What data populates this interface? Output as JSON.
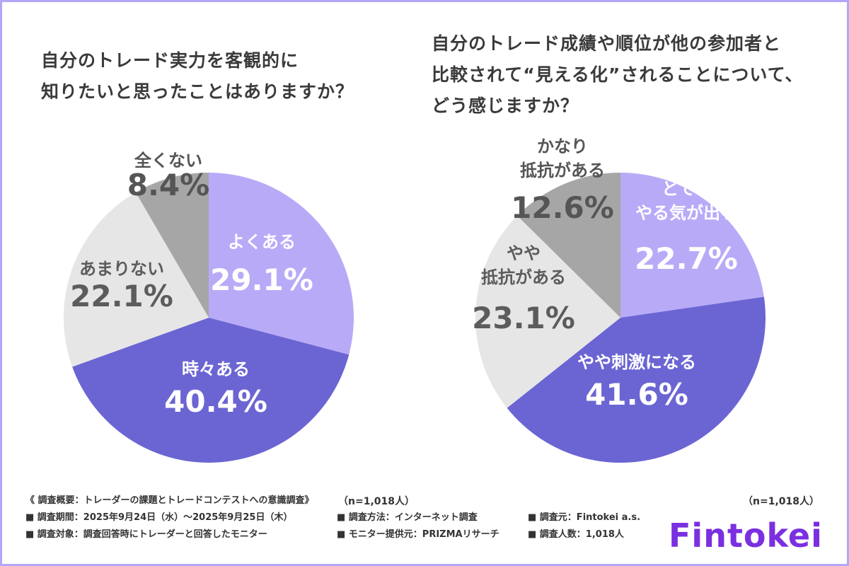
{
  "chart_data": [
    {
      "type": "pie",
      "title": [
        "自分のトレード実力を客観的に",
        "知りたいと思ったことはありますか？"
      ],
      "n_label": "（n=1,018人）",
      "slices": [
        {
          "label": [
            "よくある"
          ],
          "value": 29.1,
          "value_text": "29.1%",
          "color": "#b9aaf8",
          "text_color": "#ffffff"
        },
        {
          "label": [
            "時々ある"
          ],
          "value": 40.4,
          "value_text": "40.4%",
          "color": "#6b65d3",
          "text_color": "#ffffff"
        },
        {
          "label": [
            "あまりない"
          ],
          "value": 22.1,
          "value_text": "22.1%",
          "color": "#e6e6e6",
          "text_color": "#5c5c5c"
        },
        {
          "label": [
            "全くない"
          ],
          "value": 8.4,
          "value_text": "8.4%",
          "color": "#a6a6a6",
          "text_color": "#555555"
        }
      ]
    },
    {
      "type": "pie",
      "title": [
        "自分のトレード成績や順位が他の参加者と",
        "比較されて“見える化”されることについて、",
        "どう感じますか？"
      ],
      "n_label": "（n=1,018人）",
      "slices": [
        {
          "label": [
            "とても",
            "やる気が出る"
          ],
          "value": 22.7,
          "value_text": "22.7%",
          "color": "#b9aaf8",
          "text_color": "#ffffff"
        },
        {
          "label": [
            "やや刺激になる"
          ],
          "value": 41.6,
          "value_text": "41.6%",
          "color": "#6b65d3",
          "text_color": "#ffffff"
        },
        {
          "label": [
            "やや",
            "抵抗がある"
          ],
          "value": 23.1,
          "value_text": "23.1%",
          "color": "#e6e6e6",
          "text_color": "#5c5c5c"
        },
        {
          "label": [
            "かなり",
            "抵抗がある"
          ],
          "value": 12.6,
          "value_text": "12.6%",
          "color": "#a6a6a6",
          "text_color": "#555555"
        }
      ]
    }
  ],
  "footer": {
    "heading": "《 調査概要：トレーダーの課題とトレードコンテストへの意識調査》",
    "rows": [
      [
        "■ 調査期間：2025年9月24日（水）～2025年9月25日（木）",
        "■ 調査方法：インターネット調査",
        "■ 調査元：Fintokei a.s."
      ],
      [
        "■ 調査対象：調査回答時にトレーダーと回答したモニター",
        "■ モニター提供元：PRIZMAリサーチ",
        "■ 調査人数：1,018人"
      ]
    ]
  },
  "brand": {
    "logo": "Fintokei",
    "color": "#7a2fe0"
  }
}
